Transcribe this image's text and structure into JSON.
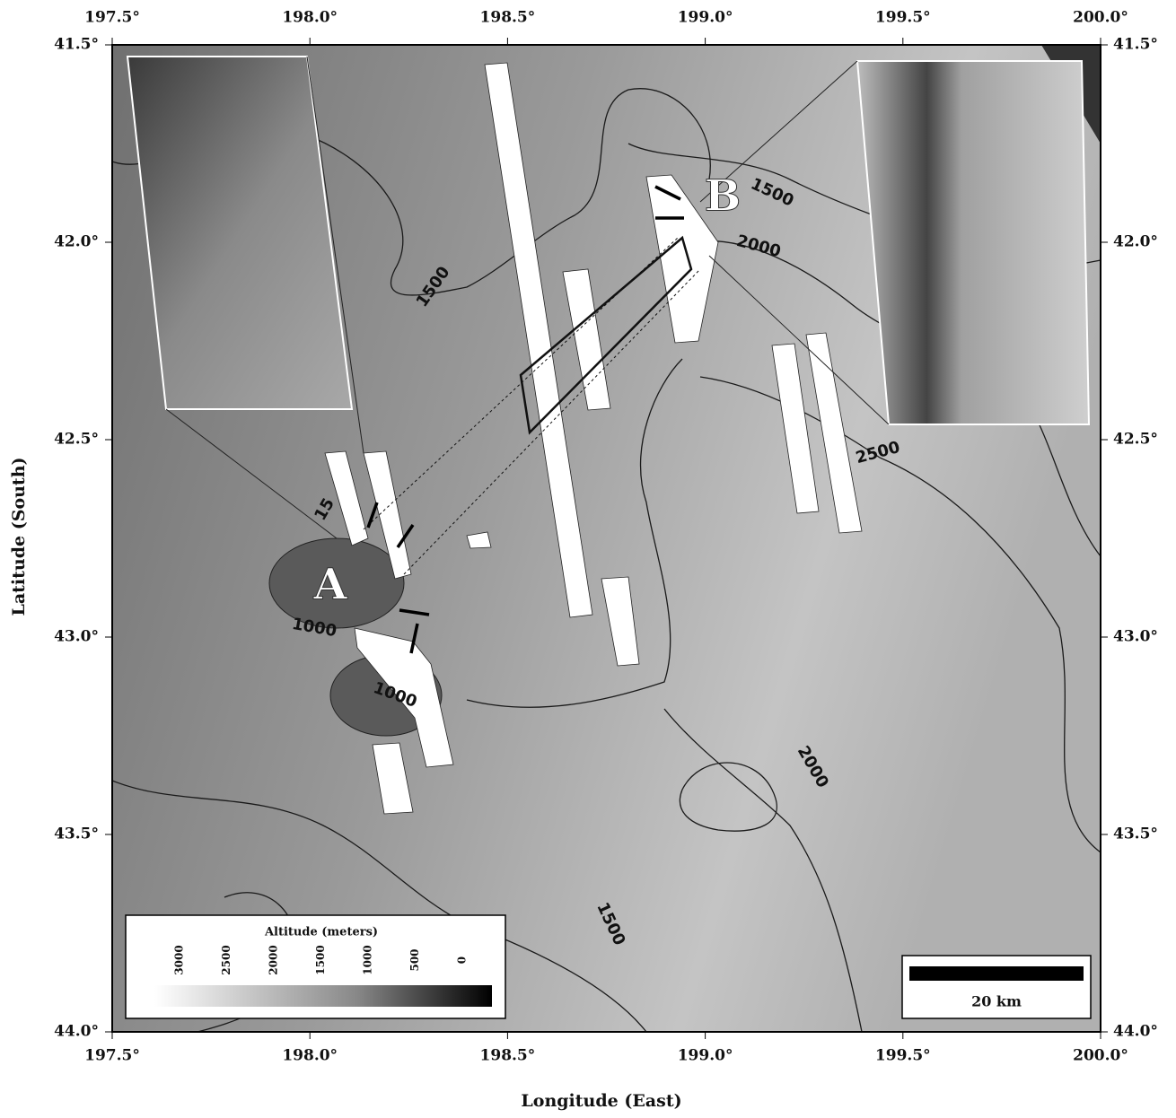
{
  "map": {
    "x_axis": {
      "label": "Longitude (East)",
      "lim": [
        197.5,
        200.0
      ],
      "ticks": [
        {
          "value": 197.5,
          "label": "197.5°"
        },
        {
          "value": 198.0,
          "label": "198.0°"
        },
        {
          "value": 198.5,
          "label": "198.5°"
        },
        {
          "value": 199.0,
          "label": "199.0°"
        },
        {
          "value": 199.5,
          "label": "199.5°"
        },
        {
          "value": 200.0,
          "label": "200.0°"
        }
      ]
    },
    "y_axis": {
      "label": "Latitude (South)",
      "lim": [
        41.5,
        44.0
      ],
      "ticks": [
        {
          "value": 41.5,
          "label": "41.5°"
        },
        {
          "value": 42.0,
          "label": "42.0°"
        },
        {
          "value": 42.5,
          "label": "42.5°"
        },
        {
          "value": 43.0,
          "label": "43.0°"
        },
        {
          "value": 43.5,
          "label": "43.5°"
        },
        {
          "value": 44.0,
          "label": "44.0°"
        }
      ]
    },
    "contour_labels": [
      "1500",
      "2000",
      "1500",
      "1500",
      "2500",
      "2000",
      "1000",
      "1000",
      "15"
    ],
    "sites": [
      "A",
      "B"
    ],
    "colorbar": {
      "title": "Altitude (meters)",
      "ticks": [
        3000,
        2500,
        2000,
        1500,
        1000,
        500,
        0
      ]
    },
    "scale_bar": "20 km"
  }
}
